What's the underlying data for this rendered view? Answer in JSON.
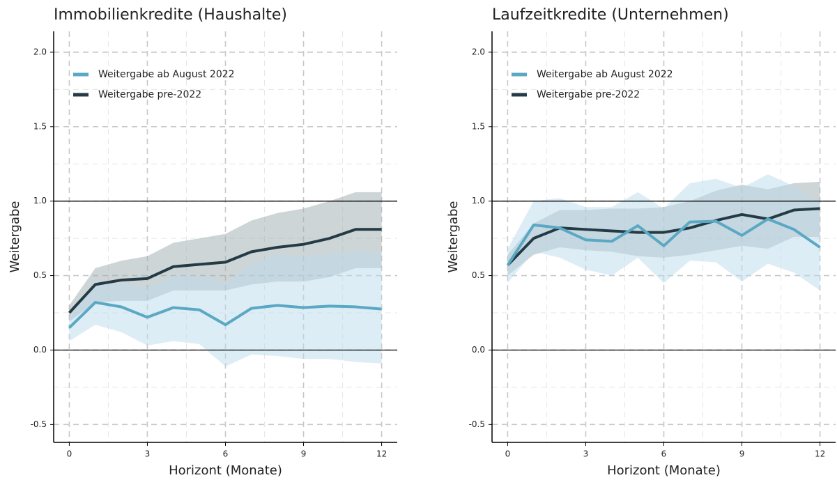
{
  "chart_data": [
    {
      "type": "line",
      "title": "Immobilienkredite (Haushalte)",
      "x_label": "Horizont (Monate)",
      "y_label": "Weitergabe",
      "x": [
        0,
        1,
        2,
        3,
        4,
        5,
        6,
        7,
        8,
        9,
        10,
        11,
        12
      ],
      "xlim": [
        -0.6,
        12.6
      ],
      "xticks": [
        0,
        3,
        6,
        9,
        12
      ],
      "ylim": [
        -0.62,
        2.14
      ],
      "yticks": [
        -0.5,
        {
          "value": 0,
          "label": "0.0"
        },
        0.5,
        {
          "value": 1,
          "label": "1.0"
        },
        1.5,
        {
          "value": 2,
          "label": "2.0"
        }
      ],
      "hlines": [
        0,
        1
      ],
      "grid": true,
      "legend": "top-left",
      "series": [
        {
          "name": "Weitergabe ab August 2022",
          "color": "#5ba8c4",
          "band_color": "#bcdceb",
          "values": [
            0.15,
            0.32,
            0.29,
            0.22,
            0.285,
            0.27,
            0.17,
            0.28,
            0.3,
            0.285,
            0.295,
            0.29,
            0.275
          ],
          "lower": [
            0.06,
            0.17,
            0.12,
            0.03,
            0.06,
            0.04,
            -0.11,
            -0.03,
            -0.04,
            -0.06,
            -0.06,
            -0.08,
            -0.09
          ],
          "upper": [
            0.22,
            0.46,
            0.45,
            0.42,
            0.5,
            0.5,
            0.45,
            0.58,
            0.64,
            0.63,
            0.65,
            0.66,
            0.65
          ]
        },
        {
          "name": "Weitergabe pre-2022",
          "color": "#243b45",
          "band_color": "#9eabaf",
          "values": [
            0.25,
            0.44,
            0.47,
            0.48,
            0.56,
            0.575,
            0.59,
            0.66,
            0.69,
            0.71,
            0.75,
            0.81,
            0.81
          ],
          "lower": [
            0.19,
            0.32,
            0.33,
            0.33,
            0.4,
            0.4,
            0.4,
            0.44,
            0.46,
            0.46,
            0.49,
            0.55,
            0.55
          ],
          "upper": [
            0.3,
            0.55,
            0.6,
            0.63,
            0.72,
            0.75,
            0.78,
            0.87,
            0.92,
            0.95,
            1.0,
            1.06,
            1.06
          ]
        }
      ]
    },
    {
      "type": "line",
      "title": "Laufzeitkredite (Unternehmen)",
      "x_label": "Horizont (Monate)",
      "y_label": "Weitergabe",
      "x": [
        0,
        1,
        2,
        3,
        4,
        5,
        6,
        7,
        8,
        9,
        10,
        11,
        12
      ],
      "xlim": [
        -0.6,
        12.6
      ],
      "xticks": [
        0,
        3,
        6,
        9,
        12
      ],
      "ylim": [
        -0.62,
        2.14
      ],
      "yticks": [
        -0.5,
        {
          "value": 0,
          "label": "0.0"
        },
        0.5,
        {
          "value": 1,
          "label": "1.0"
        },
        1.5,
        {
          "value": 2,
          "label": "2.0"
        }
      ],
      "hlines": [
        0,
        1
      ],
      "grid": true,
      "legend": "top-left",
      "series": [
        {
          "name": "Weitergabe ab August 2022",
          "color": "#5ba8c4",
          "band_color": "#bcdceb",
          "values": [
            0.57,
            0.84,
            0.82,
            0.74,
            0.73,
            0.835,
            0.7,
            0.86,
            0.865,
            0.77,
            0.88,
            0.81,
            0.69
          ],
          "lower": [
            0.45,
            0.66,
            0.62,
            0.54,
            0.5,
            0.62,
            0.45,
            0.6,
            0.59,
            0.46,
            0.58,
            0.52,
            0.4
          ],
          "upper": [
            0.68,
            1.0,
            1.02,
            0.96,
            0.96,
            1.06,
            0.95,
            1.12,
            1.15,
            1.09,
            1.18,
            1.1,
            0.98
          ]
        },
        {
          "name": "Weitergabe pre-2022",
          "color": "#243b45",
          "band_color": "#9eabaf",
          "values": [
            0.57,
            0.75,
            0.82,
            0.81,
            0.8,
            0.79,
            0.79,
            0.82,
            0.87,
            0.91,
            0.88,
            0.94,
            0.95
          ],
          "lower": [
            0.5,
            0.64,
            0.69,
            0.67,
            0.66,
            0.63,
            0.62,
            0.64,
            0.67,
            0.7,
            0.68,
            0.76,
            0.76
          ],
          "upper": [
            0.64,
            0.85,
            0.94,
            0.94,
            0.95,
            0.95,
            0.96,
            1.0,
            1.07,
            1.11,
            1.08,
            1.12,
            1.13
          ]
        }
      ]
    }
  ]
}
